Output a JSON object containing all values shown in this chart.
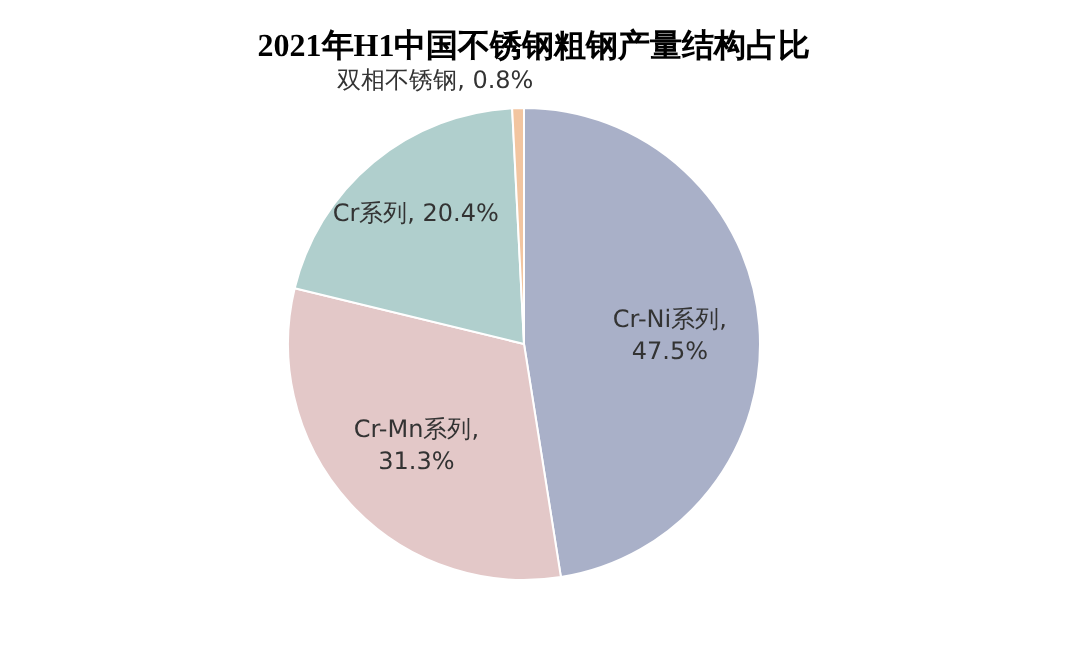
{
  "chart_data": {
    "type": "pie",
    "title": "2021年H1中国不锈钢粗钢产量结构占比",
    "categories": [
      "Cr-Ni系列",
      "Cr-Mn系列",
      "Cr系列",
      "双相不锈钢"
    ],
    "values": [
      47.5,
      31.3,
      20.4,
      0.8
    ],
    "colors": [
      "#a9b0c8",
      "#e3c8c8",
      "#b0cfcd",
      "#f2c5a0"
    ],
    "value_labels": [
      ", 47.5%",
      ", 31.3%",
      ", 20.4%",
      ", 0.8%"
    ]
  }
}
